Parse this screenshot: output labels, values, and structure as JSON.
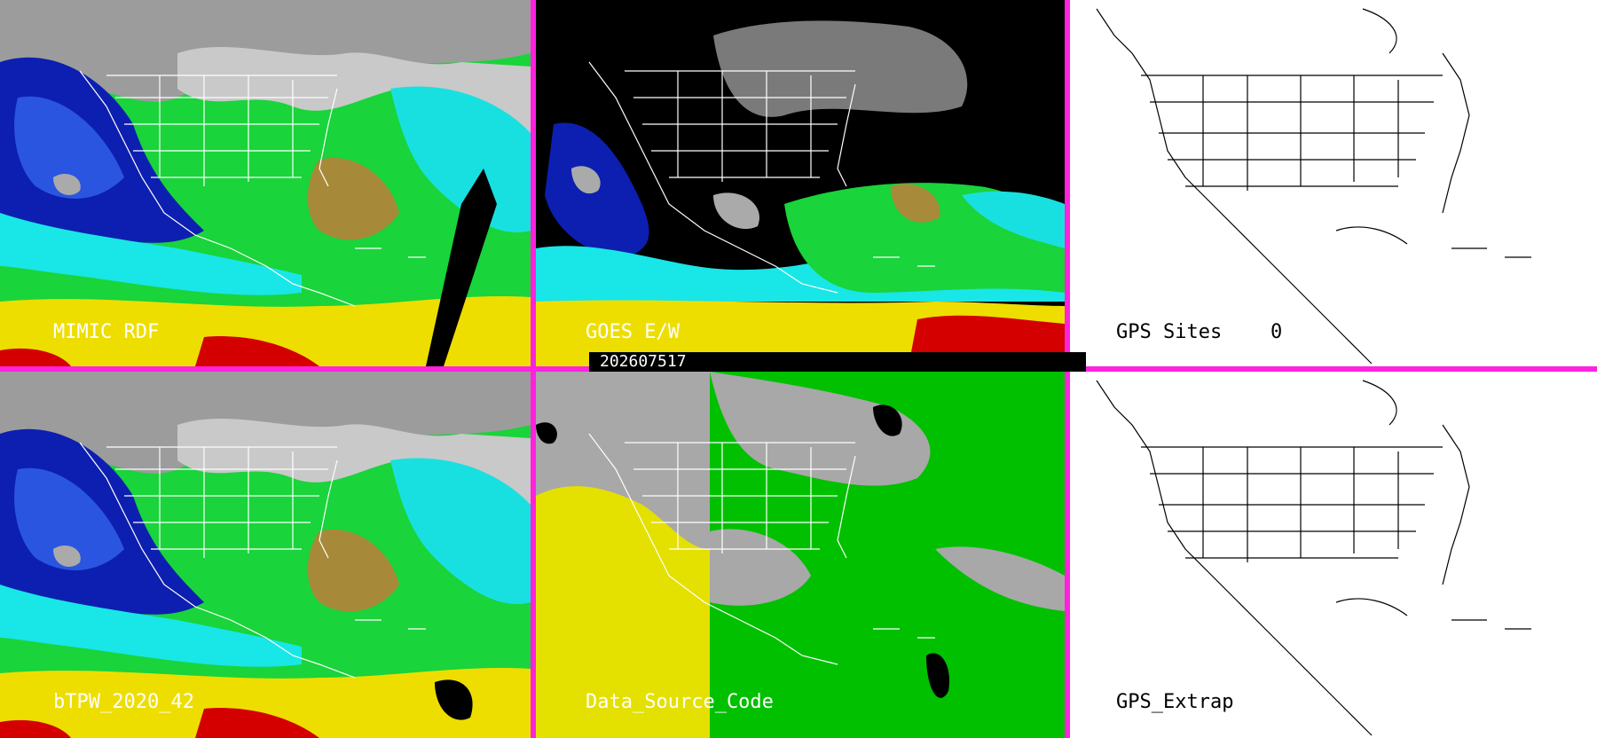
{
  "panels": [
    {
      "id": "p1",
      "title": "MIMIC RDF",
      "theme": "tpw"
    },
    {
      "id": "p2",
      "title": "GOES E/W",
      "theme": "goes"
    },
    {
      "id": "p3",
      "title": "GPS Sites",
      "count": "0",
      "theme": "blank"
    },
    {
      "id": "p4",
      "title": "bTPW_2020_42",
      "theme": "tpw"
    },
    {
      "id": "p5",
      "title": "Data_Source_Code",
      "theme": "source"
    },
    {
      "id": "p6",
      "title": "GPS_Extrap",
      "theme": "blank"
    }
  ],
  "timestamp": "202607517",
  "colors": {
    "divider": "#ff22dd",
    "tpw_scale": [
      "#9a9a9a",
      "#e6e6e6",
      "#0a1aa8",
      "#1c46d8",
      "#19e8e8",
      "#18d33a",
      "#7ee82d",
      "#a88b3a",
      "#f0e000",
      "#d40000"
    ],
    "source_scale": [
      "#a8a8a8",
      "#00c000",
      "#e4e000",
      "#000000"
    ]
  }
}
